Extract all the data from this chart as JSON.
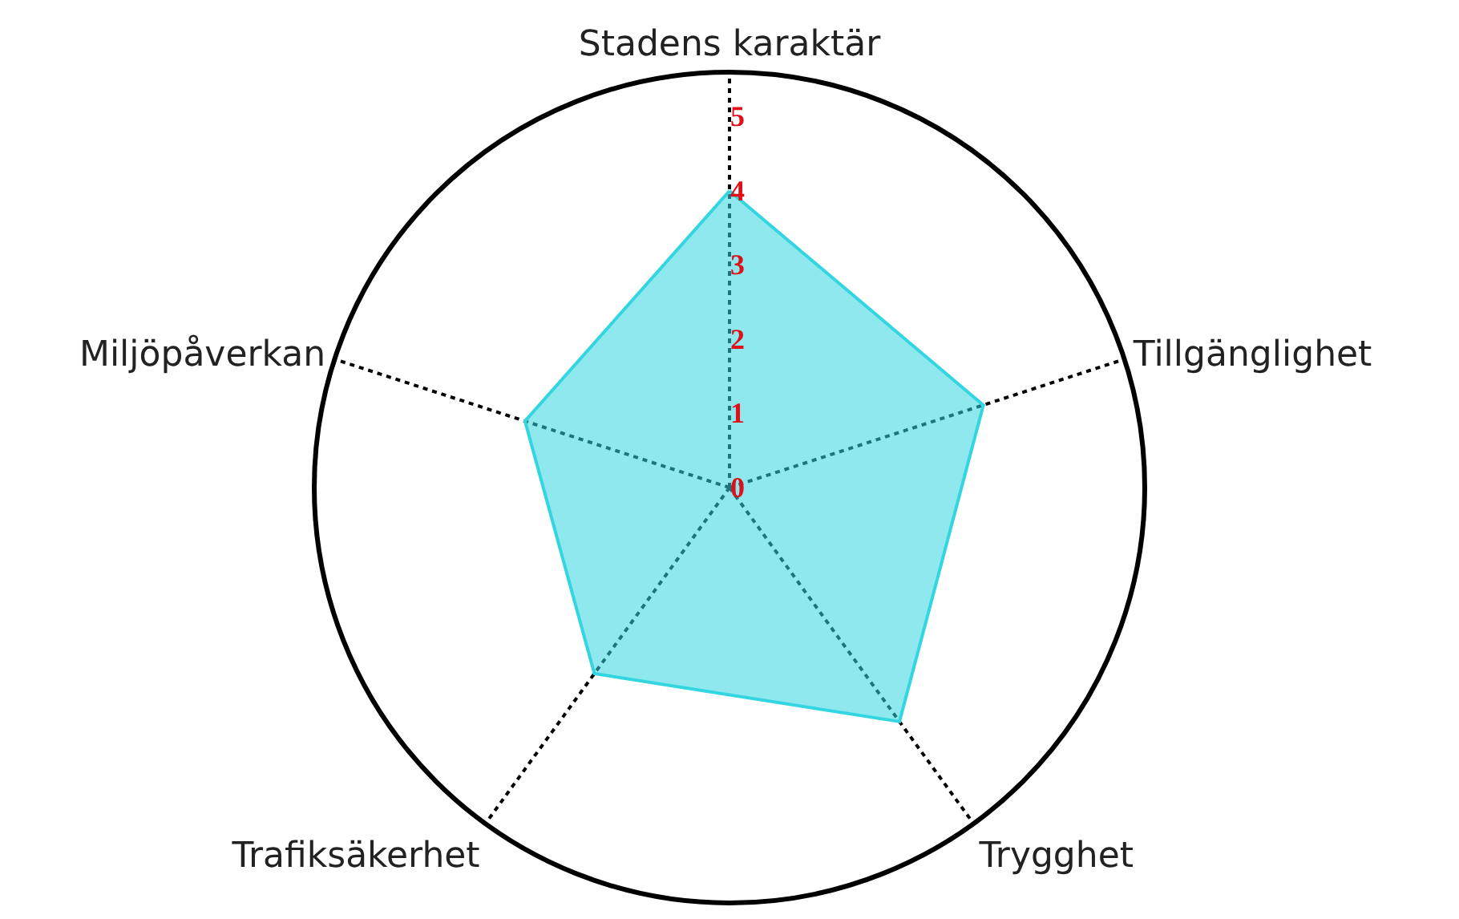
{
  "chart_data": {
    "type": "radar",
    "categories": [
      "Stadens karaktär",
      "Tillgänglighet",
      "Trygghet",
      "Trafiksäkerhet",
      "Miljöpåverkan"
    ],
    "series": [
      {
        "color": "#33d6e0",
        "values": [
          4,
          3.6,
          3.9,
          3.1,
          2.9
        ]
      }
    ],
    "ylim": [
      0,
      5.6
    ],
    "yticks": [
      0,
      1,
      2,
      3,
      4,
      5
    ],
    "grid": "x"
  }
}
